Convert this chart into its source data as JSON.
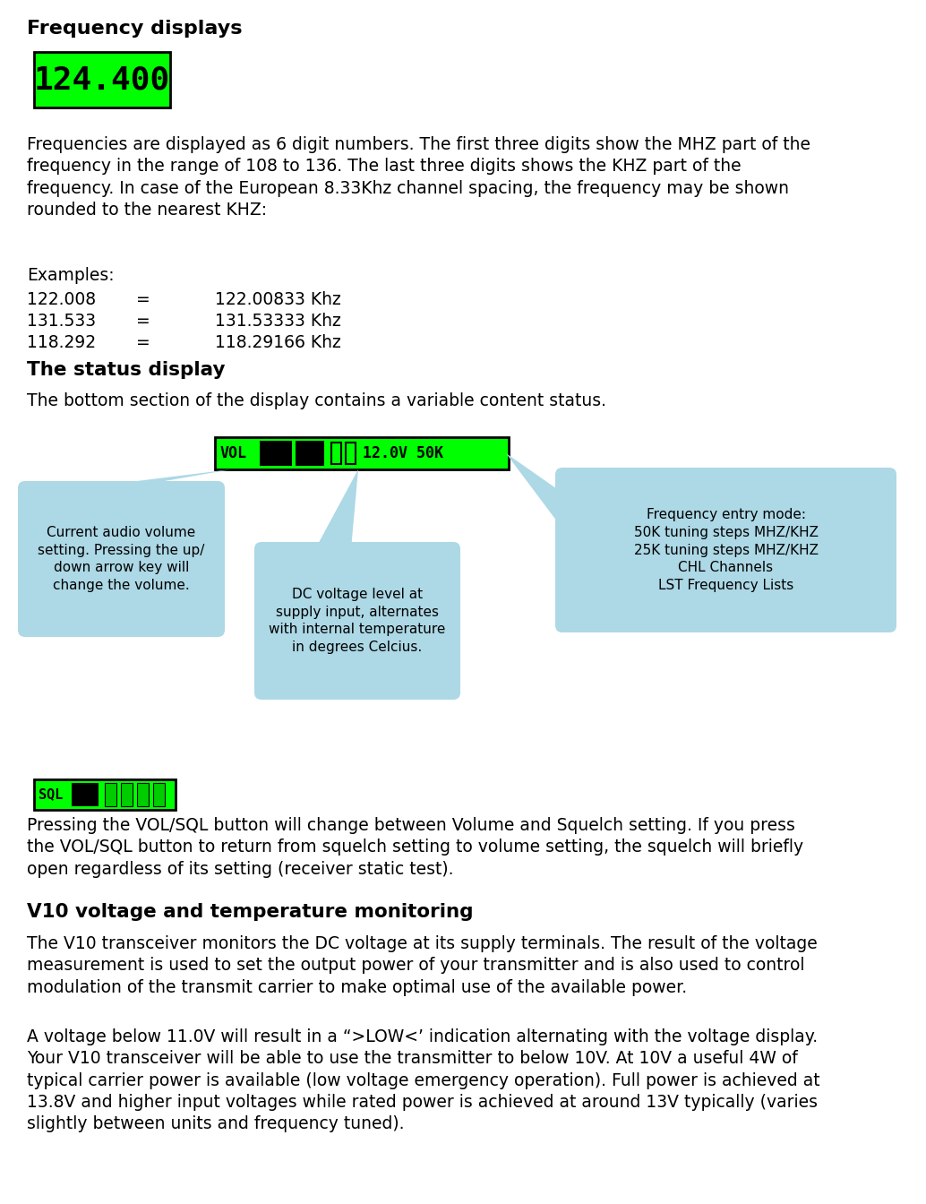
{
  "title": "Frequency displays",
  "freq_display_text": "124.400",
  "freq_display_bg": "#00FF00",
  "freq_display_fg": "#000000",
  "body_text_1": "Frequencies are displayed as 6 digit numbers. The first three digits show the MHZ part of the\nfrequency in the range of 108 to 136. The last three digits shows the KHZ part of the\nfrequency. In case of the European 8.33Khz channel spacing, the frequency may be shown\nrounded to the nearest KHZ:",
  "examples_label": "Examples:",
  "examples": [
    [
      "122.008",
      "=",
      "122.00833 Khz"
    ],
    [
      "131.533",
      "=",
      "131.53333 Khz"
    ],
    [
      "118.292",
      "=",
      "118.29166 Khz"
    ]
  ],
  "section2_title": "The status display",
  "section2_body": "The bottom section of the display contains a variable content status.",
  "vol_display_bg": "#00FF00",
  "vol_display_fg": "#000000",
  "bubble_color": "#ADD8E6",
  "bubble_texts": [
    "Current audio volume\nsetting. Pressing the up/\ndown arrow key will\nchange the volume.",
    "DC voltage level at\nsupply input, alternates\nwith internal temperature\nin degrees Celcius.",
    "Frequency entry mode:\n50K tuning steps MHZ/KHZ\n25K tuning steps MHZ/KHZ\nCHL Channels\nLST Frequency Lists"
  ],
  "sql_display_bg": "#00FF00",
  "squelch_text": "Pressing the VOL/SQL button will change between Volume and Squelch setting. If you press\nthe VOL/SQL button to return from squelch setting to volume setting, the squelch will briefly\nopen regardless of its setting (receiver static test).",
  "section3_title": "V10 voltage and temperature monitoring",
  "section3_body1": "The V10 transceiver monitors the DC voltage at its supply terminals. The result of the voltage\nmeasurement is used to set the output power of your transmitter and is also used to control\nmodulation of the transmit carrier to make optimal use of the available power.",
  "section3_body2": "A voltage below 11.0V will result in a “>LOW<’ indication alternating with the voltage display.\nYour V10 transceiver will be able to use the transmitter to below 10V. At 10V a useful 4W of\ntypical carrier power is available (low voltage emergency operation). Full power is achieved at\n13.8V and higher input voltages while rated power is achieved at around 13V typically (varies\nslightly between units and frequency tuned).",
  "bg_color": "#FFFFFF",
  "title_fontsize": 16,
  "body_fontsize": 13.5,
  "section_title_fontsize": 15.5
}
